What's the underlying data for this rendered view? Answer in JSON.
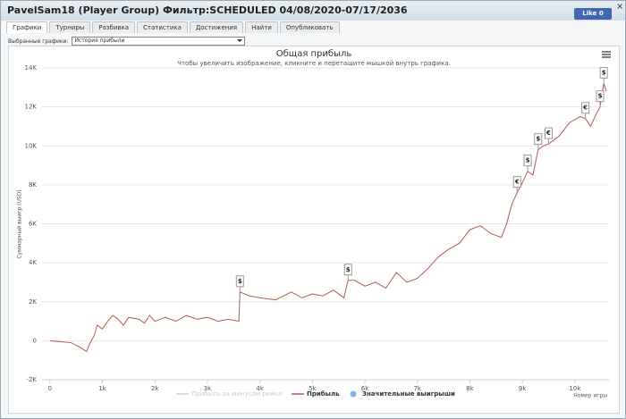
{
  "header": {
    "title": "PavelSam18 (Player Group) Фильтр:SCHEDULED 04/08/2020-07/17/2036",
    "like": "Like",
    "like_count": 0,
    "close": "×"
  },
  "tabs": [
    "Графики",
    "Турниры",
    "Разбивка",
    "Статистика",
    "Достижения",
    "Найти",
    "Опубликовать"
  ],
  "selector": {
    "label": "Выбранные графики:",
    "value": "История прибыли"
  },
  "chart_data": {
    "type": "line",
    "title": "Общая прибыль",
    "subtitle": "Чтобы увеличить изображение, кликните и перетащите мышкой внутрь графика.",
    "y_label": "Суммарный выигр (USD)",
    "x_label": "Номер игры",
    "xlim": [
      -150,
      10650
    ],
    "ylim": [
      -2000,
      14000
    ],
    "xticks": [
      0,
      {
        "value": 1000,
        "label": "1k"
      },
      {
        "value": 2000,
        "label": "2k"
      },
      {
        "value": 3000,
        "label": "3k"
      },
      {
        "value": 4000,
        "label": "4k"
      },
      {
        "value": 5000,
        "label": "5k"
      },
      {
        "value": 6000,
        "label": "6k"
      },
      {
        "value": 7000,
        "label": "7k"
      },
      {
        "value": 8000,
        "label": "8k"
      },
      {
        "value": 9000,
        "label": "9k"
      },
      {
        "value": 10000,
        "label": "10k"
      }
    ],
    "yticks": [
      {
        "value": -2000,
        "label": "-2K"
      },
      0,
      {
        "value": 2000,
        "label": "2K"
      },
      {
        "value": 4000,
        "label": "4K"
      },
      {
        "value": 6000,
        "label": "6K"
      },
      {
        "value": 8000,
        "label": "8K"
      },
      {
        "value": 10000,
        "label": "10K"
      },
      {
        "value": 12000,
        "label": "12K"
      },
      {
        "value": 14000,
        "label": "14K"
      }
    ],
    "grid": true,
    "x": [
      0,
      200,
      400,
      550,
      700,
      750,
      850,
      900,
      1000,
      1100,
      1200,
      1300,
      1400,
      1500,
      1700,
      1800,
      1900,
      2000,
      2200,
      2400,
      2600,
      2800,
      3000,
      3200,
      3400,
      3600,
      3620,
      3800,
      4000,
      4300,
      4600,
      4800,
      5000,
      5200,
      5400,
      5600,
      5680,
      5800,
      6000,
      6200,
      6400,
      6600,
      6800,
      7000,
      7200,
      7400,
      7600,
      7800,
      8000,
      8200,
      8400,
      8600,
      8700,
      8800,
      8900,
      9000,
      9100,
      9200,
      9300,
      9400,
      9500,
      9700,
      9900,
      10100,
      10200,
      10300,
      10400,
      10480,
      10550,
      10600
    ],
    "series": [
      {
        "name": "Прибыль за минусом рейка",
        "color": "#cccccc",
        "visible": false
      },
      {
        "name": "Прибыль",
        "color": "#b5584f",
        "visible": true,
        "values": [
          0,
          -50,
          -100,
          -300,
          -550,
          -200,
          300,
          800,
          600,
          1000,
          1300,
          1100,
          800,
          1200,
          1100,
          900,
          1300,
          1000,
          1200,
          1000,
          1300,
          1100,
          1200,
          1000,
          1100,
          1000,
          2500,
          2300,
          2200,
          2100,
          2500,
          2200,
          2400,
          2300,
          2600,
          2200,
          3100,
          3100,
          2800,
          3000,
          2700,
          3500,
          3000,
          3200,
          3700,
          4300,
          4700,
          5000,
          5700,
          5900,
          5500,
          5300,
          6000,
          7000,
          7600,
          8100,
          8700,
          8500,
          9800,
          10000,
          10100,
          10500,
          11200,
          11500,
          11400,
          11000,
          11600,
          12000,
          13200,
          12800
        ]
      },
      {
        "name": "Значительные выигрыши",
        "color": "#7cb5ec",
        "type": "flags",
        "visible": true,
        "x": [
          3620,
          5680,
          8900,
          9100,
          9300,
          9500,
          10200,
          10480,
          10550
        ],
        "values": [
          2500,
          3100,
          7600,
          8700,
          9800,
          10100,
          11400,
          12000,
          13200
        ],
        "labels": [
          "$",
          "$",
          "€",
          "$",
          "$",
          "€",
          "€",
          "$",
          "$"
        ]
      }
    ]
  }
}
